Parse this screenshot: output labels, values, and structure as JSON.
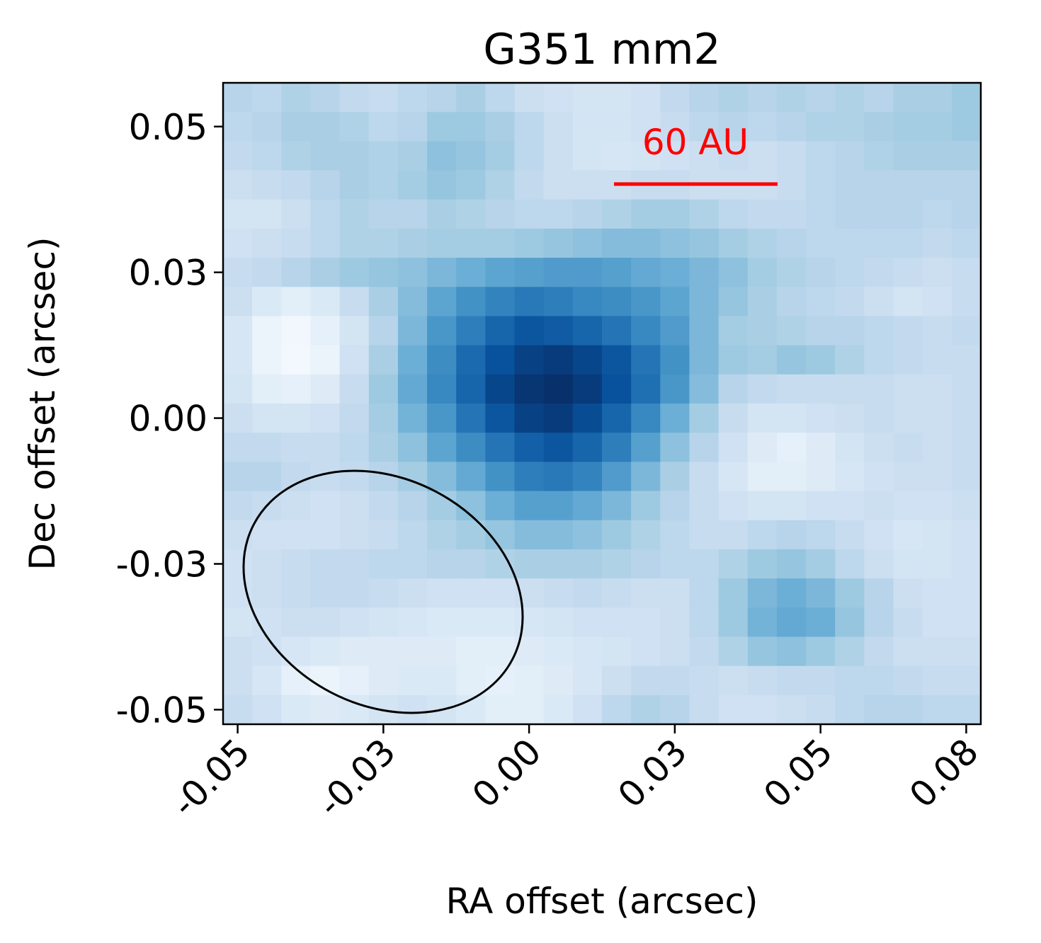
{
  "chart_data": {
    "type": "heatmap",
    "title": "G351 mm2",
    "xlabel": "RA offset (arcsec)",
    "ylabel": "Dec offset (arcsec)",
    "x_ticks": [
      "-0.05",
      "-0.03",
      "0.00",
      "0.03",
      "0.05",
      "0.08"
    ],
    "x_tick_values": [
      -0.05,
      -0.025,
      0.0,
      0.025,
      0.05,
      0.075
    ],
    "y_ticks": [
      "0.05",
      "0.03",
      "0.00",
      "-0.03",
      "-0.05"
    ],
    "y_tick_values": [
      0.05,
      0.025,
      0.0,
      -0.025,
      -0.05
    ],
    "xlim": [
      -0.0525,
      0.0775
    ],
    "ylim": [
      -0.0525,
      0.0575
    ],
    "colormap": "Blues",
    "value_range": [
      0,
      1
    ],
    "cell_size_arcsec": 0.005,
    "grid": false,
    "intensity_rows_top_to_bottom": [
      [
        0.3,
        0.28,
        0.32,
        0.3,
        0.26,
        0.24,
        0.28,
        0.3,
        0.34,
        0.28,
        0.22,
        0.2,
        0.18,
        0.18,
        0.2,
        0.26,
        0.3,
        0.32,
        0.3,
        0.32,
        0.3,
        0.32,
        0.3,
        0.34,
        0.34,
        0.38
      ],
      [
        0.28,
        0.3,
        0.34,
        0.34,
        0.32,
        0.28,
        0.3,
        0.38,
        0.38,
        0.34,
        0.28,
        0.22,
        0.18,
        0.18,
        0.2,
        0.24,
        0.28,
        0.3,
        0.28,
        0.3,
        0.32,
        0.32,
        0.34,
        0.36,
        0.36,
        0.38
      ],
      [
        0.26,
        0.28,
        0.32,
        0.34,
        0.34,
        0.32,
        0.34,
        0.42,
        0.4,
        0.36,
        0.28,
        0.22,
        0.18,
        0.16,
        0.18,
        0.2,
        0.22,
        0.24,
        0.22,
        0.24,
        0.28,
        0.3,
        0.32,
        0.34,
        0.34,
        0.34
      ],
      [
        0.22,
        0.24,
        0.26,
        0.3,
        0.34,
        0.32,
        0.36,
        0.4,
        0.38,
        0.32,
        0.26,
        0.22,
        0.22,
        0.22,
        0.24,
        0.24,
        0.22,
        0.22,
        0.22,
        0.24,
        0.28,
        0.3,
        0.3,
        0.3,
        0.3,
        0.3
      ],
      [
        0.18,
        0.18,
        0.22,
        0.28,
        0.32,
        0.3,
        0.3,
        0.34,
        0.32,
        0.3,
        0.28,
        0.28,
        0.3,
        0.32,
        0.36,
        0.36,
        0.32,
        0.28,
        0.26,
        0.26,
        0.28,
        0.3,
        0.3,
        0.3,
        0.28,
        0.3
      ],
      [
        0.2,
        0.22,
        0.24,
        0.28,
        0.32,
        0.32,
        0.34,
        0.36,
        0.36,
        0.36,
        0.38,
        0.4,
        0.42,
        0.44,
        0.44,
        0.42,
        0.4,
        0.36,
        0.32,
        0.3,
        0.28,
        0.28,
        0.28,
        0.28,
        0.26,
        0.28
      ],
      [
        0.24,
        0.26,
        0.3,
        0.34,
        0.38,
        0.4,
        0.42,
        0.46,
        0.5,
        0.54,
        0.56,
        0.58,
        0.58,
        0.56,
        0.52,
        0.5,
        0.46,
        0.42,
        0.36,
        0.32,
        0.3,
        0.28,
        0.26,
        0.24,
        0.22,
        0.24
      ],
      [
        0.22,
        0.14,
        0.1,
        0.14,
        0.24,
        0.34,
        0.44,
        0.54,
        0.62,
        0.68,
        0.72,
        0.7,
        0.66,
        0.64,
        0.6,
        0.54,
        0.46,
        0.4,
        0.34,
        0.3,
        0.28,
        0.26,
        0.22,
        0.18,
        0.2,
        0.24
      ],
      [
        0.16,
        0.06,
        0.03,
        0.08,
        0.18,
        0.3,
        0.46,
        0.6,
        0.7,
        0.8,
        0.86,
        0.84,
        0.8,
        0.74,
        0.66,
        0.58,
        0.46,
        0.36,
        0.34,
        0.32,
        0.3,
        0.3,
        0.28,
        0.26,
        0.24,
        0.26
      ],
      [
        0.16,
        0.06,
        0.02,
        0.06,
        0.2,
        0.34,
        0.5,
        0.64,
        0.78,
        0.88,
        0.94,
        0.96,
        0.92,
        0.86,
        0.74,
        0.62,
        0.46,
        0.38,
        0.36,
        0.4,
        0.38,
        0.32,
        0.28,
        0.26,
        0.24,
        0.24
      ],
      [
        0.18,
        0.1,
        0.08,
        0.12,
        0.24,
        0.38,
        0.52,
        0.66,
        0.8,
        0.92,
        0.98,
        1.0,
        0.96,
        0.88,
        0.76,
        0.6,
        0.44,
        0.3,
        0.26,
        0.24,
        0.24,
        0.24,
        0.24,
        0.22,
        0.22,
        0.24
      ],
      [
        0.22,
        0.18,
        0.18,
        0.2,
        0.26,
        0.36,
        0.48,
        0.6,
        0.74,
        0.86,
        0.94,
        0.96,
        0.9,
        0.8,
        0.66,
        0.5,
        0.36,
        0.24,
        0.18,
        0.18,
        0.2,
        0.22,
        0.24,
        0.22,
        0.22,
        0.24
      ],
      [
        0.26,
        0.26,
        0.24,
        0.24,
        0.28,
        0.34,
        0.42,
        0.54,
        0.64,
        0.74,
        0.82,
        0.86,
        0.8,
        0.7,
        0.56,
        0.42,
        0.3,
        0.2,
        0.12,
        0.08,
        0.12,
        0.18,
        0.22,
        0.24,
        0.22,
        0.24
      ],
      [
        0.3,
        0.3,
        0.26,
        0.24,
        0.26,
        0.3,
        0.36,
        0.44,
        0.52,
        0.62,
        0.7,
        0.72,
        0.68,
        0.58,
        0.46,
        0.34,
        0.24,
        0.16,
        0.1,
        0.1,
        0.12,
        0.16,
        0.2,
        0.22,
        0.22,
        0.24
      ],
      [
        0.26,
        0.24,
        0.22,
        0.2,
        0.22,
        0.26,
        0.3,
        0.36,
        0.42,
        0.5,
        0.56,
        0.56,
        0.52,
        0.46,
        0.38,
        0.3,
        0.24,
        0.2,
        0.18,
        0.18,
        0.2,
        0.2,
        0.22,
        0.2,
        0.2,
        0.22
      ],
      [
        0.22,
        0.2,
        0.2,
        0.2,
        0.22,
        0.24,
        0.28,
        0.32,
        0.36,
        0.4,
        0.44,
        0.44,
        0.42,
        0.38,
        0.32,
        0.28,
        0.24,
        0.24,
        0.28,
        0.3,
        0.28,
        0.24,
        0.2,
        0.16,
        0.18,
        0.2
      ],
      [
        0.2,
        0.22,
        0.24,
        0.26,
        0.26,
        0.28,
        0.28,
        0.3,
        0.3,
        0.32,
        0.34,
        0.34,
        0.34,
        0.32,
        0.3,
        0.28,
        0.28,
        0.32,
        0.38,
        0.4,
        0.36,
        0.28,
        0.22,
        0.18,
        0.18,
        0.2
      ],
      [
        0.2,
        0.22,
        0.24,
        0.26,
        0.26,
        0.24,
        0.22,
        0.2,
        0.2,
        0.2,
        0.22,
        0.24,
        0.26,
        0.24,
        0.22,
        0.22,
        0.28,
        0.38,
        0.46,
        0.5,
        0.46,
        0.38,
        0.3,
        0.22,
        0.2,
        0.2
      ],
      [
        0.18,
        0.2,
        0.22,
        0.22,
        0.2,
        0.18,
        0.16,
        0.14,
        0.14,
        0.14,
        0.16,
        0.18,
        0.2,
        0.2,
        0.2,
        0.22,
        0.28,
        0.38,
        0.48,
        0.52,
        0.5,
        0.4,
        0.3,
        0.24,
        0.2,
        0.2
      ],
      [
        0.22,
        0.2,
        0.16,
        0.14,
        0.12,
        0.12,
        0.12,
        0.12,
        0.1,
        0.1,
        0.12,
        0.14,
        0.16,
        0.18,
        0.2,
        0.22,
        0.26,
        0.32,
        0.4,
        0.42,
        0.38,
        0.32,
        0.26,
        0.22,
        0.22,
        0.22
      ],
      [
        0.22,
        0.16,
        0.08,
        0.06,
        0.08,
        0.12,
        0.14,
        0.14,
        0.1,
        0.08,
        0.1,
        0.12,
        0.16,
        0.22,
        0.26,
        0.26,
        0.24,
        0.22,
        0.24,
        0.26,
        0.26,
        0.28,
        0.28,
        0.26,
        0.24,
        0.24
      ],
      [
        0.24,
        0.2,
        0.14,
        0.12,
        0.14,
        0.18,
        0.2,
        0.18,
        0.14,
        0.1,
        0.1,
        0.14,
        0.2,
        0.28,
        0.32,
        0.3,
        0.24,
        0.2,
        0.2,
        0.22,
        0.24,
        0.28,
        0.3,
        0.3,
        0.28,
        0.28
      ]
    ],
    "beam_ellipse": true,
    "scalebar": {
      "label": "60 AU",
      "color": "#ff0000"
    }
  }
}
